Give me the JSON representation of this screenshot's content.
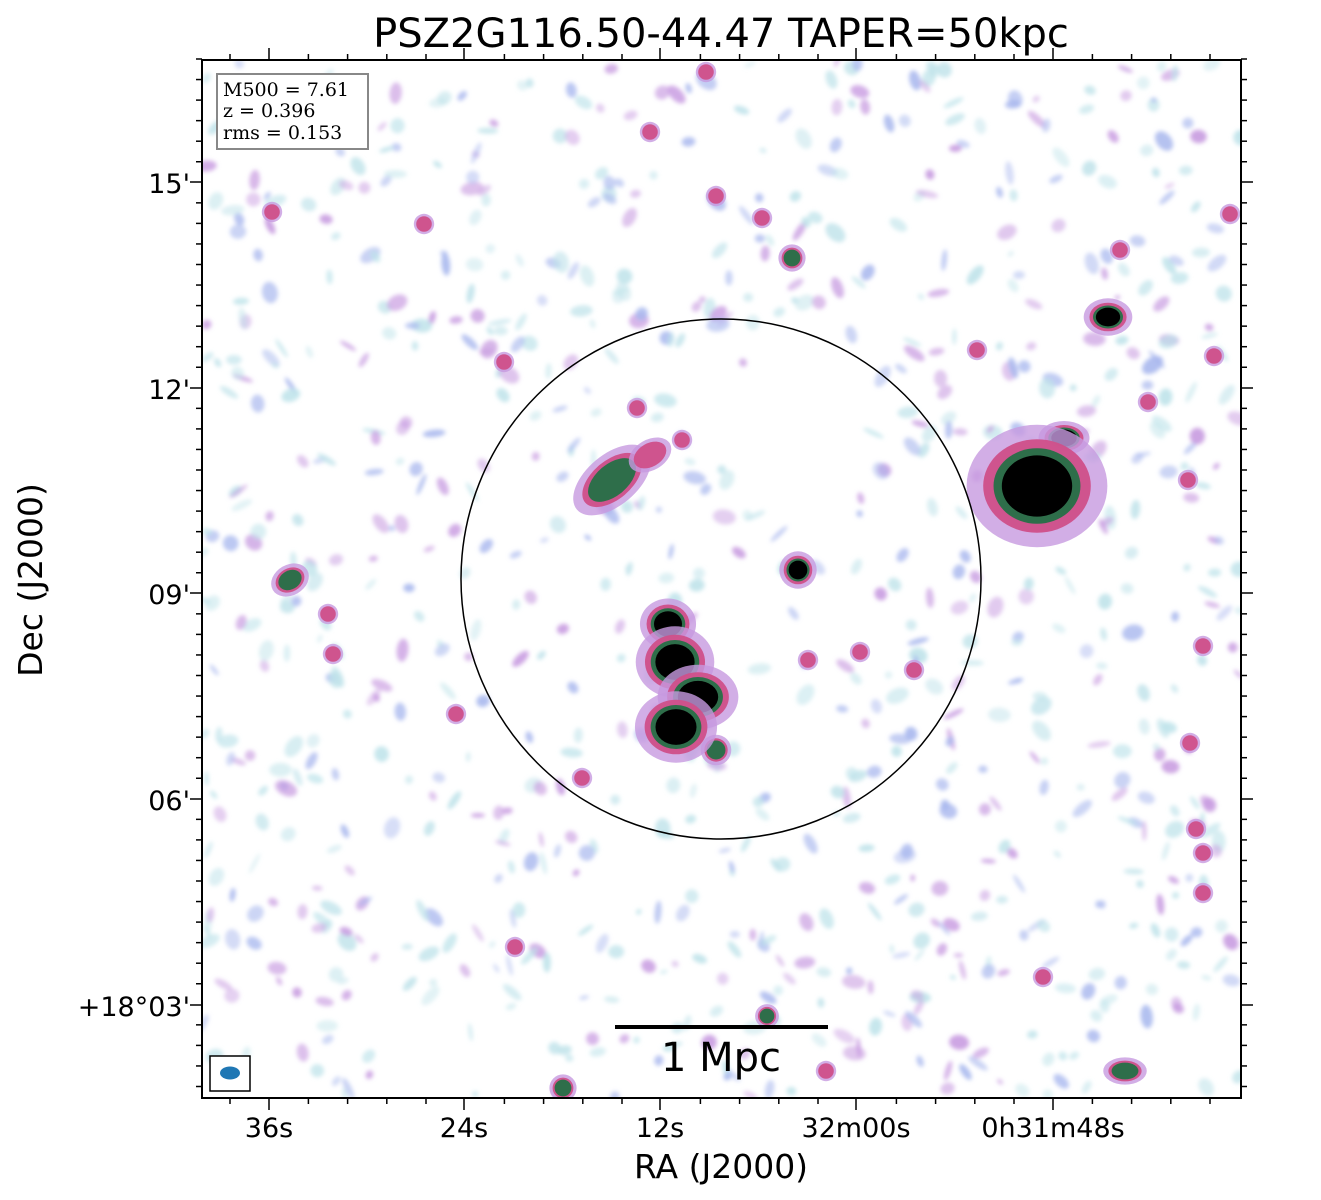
{
  "title": "PSZ2G116.50-44.47 TAPER=50kpc",
  "xaxis": {
    "label": "RA (J2000)",
    "ticks": [
      "36s",
      "24s",
      "12s",
      "32m00s",
      "0h31m48s"
    ]
  },
  "yaxis": {
    "label": "Dec (J2000)",
    "ticks": [
      "15'",
      "12'",
      "09'",
      "06'",
      "+18°03'"
    ]
  },
  "info": {
    "m500": "M500 = 7.61",
    "z": "z = 0.396",
    "rms": "rms = 0.153"
  },
  "scalebar": {
    "label": "1 Mpc"
  },
  "colors": {
    "noise_light": "#bfe3ea",
    "noise_blue": "#a9b8ee",
    "noise_violet": "#c79ae0",
    "source_pink": "#d0508a",
    "source_green": "#2e6e4a",
    "source_core": "#000000",
    "beam": "#1f77b4"
  },
  "overlays": [
    "radius-circle",
    "beam-ellipse"
  ]
}
